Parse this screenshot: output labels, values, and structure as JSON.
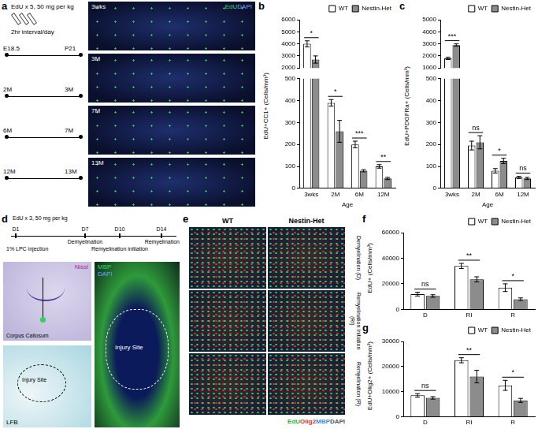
{
  "figure": {
    "a": {
      "label": "a",
      "dose": "EdU x 5, 50 mg per kg",
      "schedule": "2hr interval/day",
      "timelines": [
        {
          "start": "E18.5",
          "end": "P21"
        },
        {
          "start": "2M",
          "end": "3M"
        },
        {
          "start": "6M",
          "end": "7M"
        },
        {
          "start": "12M",
          "end": "13M"
        }
      ],
      "images": [
        "3wks",
        "3M",
        "7M",
        "13M"
      ],
      "stains": [
        "EdU",
        "DAPI"
      ]
    },
    "d": {
      "label": "d",
      "dose": "EdU x 3, 50 mg per kg",
      "injection": "1% LPC injection",
      "days": [
        "D1",
        "D7",
        "D10",
        "D14"
      ],
      "phases": [
        "Demyelination",
        "Remyelination initiation",
        "Remyelination"
      ],
      "image_nissl": {
        "stain": "Nissl",
        "region": "Corpus Callosum"
      },
      "image_lfb": {
        "stain": "LFB",
        "region": "Injury Site"
      },
      "image_mbp": {
        "stains": [
          "MBP",
          "DAPI"
        ],
        "region": "Injury Site"
      }
    },
    "e": {
      "label": "e",
      "columns": [
        "WT",
        "Nestin-Het"
      ],
      "rows": [
        "Demyelination (D)",
        "Remyelination Initiation (RI)",
        "Remyelination (R)"
      ],
      "stains": [
        "EdU",
        "Olig2",
        "MBP",
        "DAPI"
      ]
    }
  },
  "chart_data": [
    {
      "panel": "b",
      "type": "bar",
      "y_label": "EdU+CC1+ (Cells/mm³)",
      "x_label": "Age",
      "categories": [
        "3wks",
        "2M",
        "6M",
        "12M"
      ],
      "series": [
        {
          "name": "WT",
          "color": "#ffffff",
          "values": [
            4000,
            390,
            200,
            100
          ],
          "errors": [
            250,
            15,
            15,
            8
          ]
        },
        {
          "name": "Nestin-Het",
          "color": "#8c8c8c",
          "values": [
            2700,
            260,
            80,
            45
          ],
          "errors": [
            300,
            50,
            5,
            5
          ]
        }
      ],
      "segments": [
        {
          "ylim": [
            2000,
            6000
          ],
          "yticks": [
            2000,
            3000,
            4000,
            5000,
            6000
          ]
        },
        {
          "ylim": [
            0,
            500
          ],
          "yticks": [
            0,
            100,
            200,
            300,
            400,
            500
          ]
        }
      ],
      "significance": [
        "*",
        "*",
        "***",
        "**"
      ],
      "legend": "top-right",
      "grid": false
    },
    {
      "panel": "c",
      "type": "bar",
      "y_label": "EdU+PDGFRa+ (Cells/mm³)",
      "x_label": "Age",
      "categories": [
        "3wks",
        "2M",
        "6M",
        "12M"
      ],
      "series": [
        {
          "name": "WT",
          "color": "#ffffff",
          "values": [
            1800,
            195,
            80,
            50
          ],
          "errors": [
            100,
            20,
            10,
            5
          ]
        },
        {
          "name": "Nestin-Het",
          "color": "#8c8c8c",
          "values": [
            2900,
            210,
            125,
            45
          ],
          "errors": [
            100,
            30,
            12,
            5
          ]
        }
      ],
      "segments": [
        {
          "ylim": [
            1000,
            5000
          ],
          "yticks": [
            1000,
            2000,
            3000,
            4000,
            5000
          ]
        },
        {
          "ylim": [
            0,
            500
          ],
          "yticks": [
            0,
            100,
            200,
            300,
            400,
            500
          ]
        }
      ],
      "significance": [
        "***",
        "ns",
        "*",
        "ns"
      ],
      "legend": "top-right",
      "grid": false
    },
    {
      "panel": "f",
      "type": "bar",
      "y_label": "EdU+ (Cells/mm³)",
      "categories": [
        "D",
        "RI",
        "R"
      ],
      "series": [
        {
          "name": "WT",
          "color": "#ffffff",
          "values": [
            12000,
            34000,
            17000
          ],
          "errors": [
            1500,
            2000,
            3000
          ]
        },
        {
          "name": "Nestin-Het",
          "color": "#8c8c8c",
          "values": [
            10500,
            23500,
            8000
          ],
          "errors": [
            1000,
            2000,
            1000
          ]
        }
      ],
      "ylim": [
        0,
        60000
      ],
      "yticks": [
        0,
        20000,
        40000,
        60000
      ],
      "significance": [
        "ns",
        "**",
        "*"
      ],
      "legend": "top-right",
      "grid": false
    },
    {
      "panel": "g",
      "type": "bar",
      "y_label": "EdU+Olig2+ (Cells/mm³)",
      "categories": [
        "D",
        "RI",
        "R"
      ],
      "series": [
        {
          "name": "WT",
          "color": "#ffffff",
          "values": [
            8500,
            22500,
            12500
          ],
          "errors": [
            700,
            1000,
            2000
          ]
        },
        {
          "name": "Nestin-Het",
          "color": "#8c8c8c",
          "values": [
            7500,
            16000,
            6500
          ],
          "errors": [
            500,
            2500,
            800
          ]
        }
      ],
      "ylim": [
        0,
        30000
      ],
      "yticks": [
        0,
        10000,
        20000,
        30000
      ],
      "significance": [
        "ns",
        "**",
        "*"
      ],
      "legend": "top-right",
      "grid": false
    }
  ]
}
